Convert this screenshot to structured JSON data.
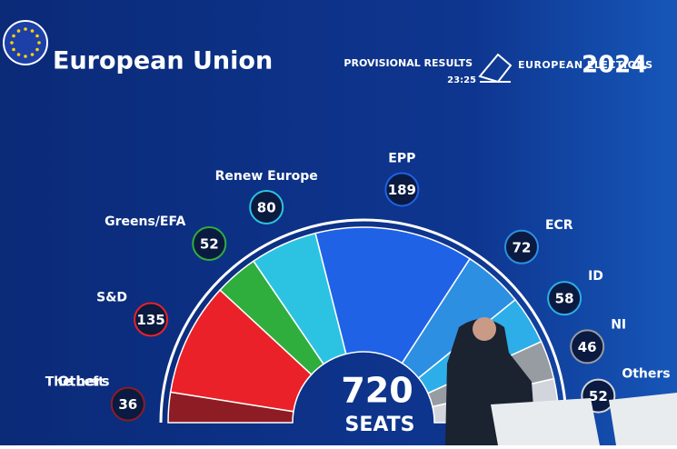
{
  "chart_data": {
    "type": "hemicycle",
    "title": "European Union",
    "header": {
      "status": "PROVISIONAL RESULTS",
      "time": "23:25",
      "event": "EUROPEAN ELECTIONS",
      "year": "2024"
    },
    "total": {
      "value": "720",
      "label": "SEATS"
    },
    "categories": [
      "The Left",
      "S&D",
      "Greens/EFA",
      "Renew Europe",
      "EPP",
      "ECR",
      "ID",
      "NI",
      "Others"
    ],
    "values": [
      36,
      135,
      52,
      80,
      189,
      72,
      58,
      46,
      52
    ],
    "colors": [
      "#8e1c24",
      "#ea2128",
      "#2fae3e",
      "#2cc3e3",
      "#1f62e6",
      "#2c8fe2",
      "#2eaee9",
      "#979ca3",
      "#d2d6dc"
    ],
    "annotations": [
      "Others"
    ]
  }
}
